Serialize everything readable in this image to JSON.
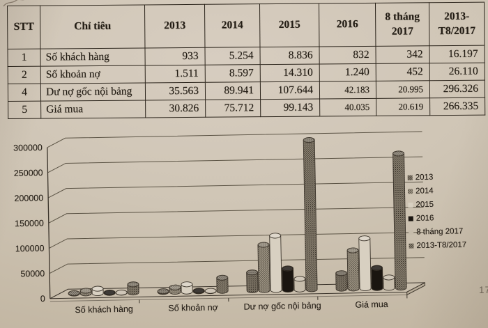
{
  "page": {
    "page_number": "17"
  },
  "colors": {
    "paper": "#cfc5b5",
    "ink": "#3a332a",
    "floor": "#c9beac",
    "floor_side": "#b9ad99"
  },
  "table": {
    "columns": [
      "STT",
      "Chỉ tiêu",
      "2013",
      "2014",
      "2015",
      "2016",
      "8 tháng 2017",
      "2013-T8/2017"
    ],
    "rows": [
      {
        "stt": "1",
        "label": "Số khách hàng",
        "values": [
          "933",
          "5.254",
          "8.836",
          "832",
          "342",
          "16.197"
        ]
      },
      {
        "stt": "2",
        "label": "Số khoản nợ",
        "values": [
          "1.511",
          "8.597",
          "14.310",
          "1.240",
          "452",
          "26.110"
        ]
      },
      {
        "stt": "4",
        "label": "Dư nợ gốc nội bảng",
        "values": [
          "35.563",
          "89.941",
          "107.644",
          "42.183",
          "20.995",
          "296.326"
        ]
      },
      {
        "stt": "5",
        "label": "Giá mua",
        "values": [
          "30.826",
          "75.712",
          "99.143",
          "40.035",
          "20.619",
          "266.335"
        ]
      }
    ]
  },
  "chart_data": {
    "type": "bar",
    "style": "3d-cylinder",
    "title": "",
    "xlabel": "",
    "ylabel": "",
    "categories": [
      "Số khách hàng",
      "Số khoản nợ",
      "Dư nợ gốc nội bảng",
      "Giá mua"
    ],
    "series": [
      {
        "name": "2013",
        "values": [
          933,
          1511,
          35563,
          30826
        ],
        "color": "#847b6c",
        "pattern": "speckle-dark"
      },
      {
        "name": "2014",
        "values": [
          5254,
          8597,
          89941,
          75712
        ],
        "color": "#a29988",
        "pattern": "speckle"
      },
      {
        "name": "2015",
        "values": [
          8836,
          14310,
          107644,
          99143
        ],
        "color": "#d8d0c1",
        "pattern": "plain-light"
      },
      {
        "name": "2016",
        "values": [
          832,
          1240,
          42183,
          40035
        ],
        "color": "#1a1510",
        "pattern": "solid-black"
      },
      {
        "name": "8 tháng 2017",
        "values": [
          342,
          452,
          20995,
          20619
        ],
        "color": "#c6bcab",
        "pattern": "plain"
      },
      {
        "name": "2013-T8/2017",
        "values": [
          16197,
          26110,
          296326,
          266335
        ],
        "color": "#8d8474",
        "pattern": "speckle-dark"
      }
    ],
    "ylim": [
      0,
      300000
    ],
    "ytick_step": 50000,
    "yticks": [
      "0",
      "50000",
      "100000",
      "150000",
      "200000",
      "250000",
      "300000"
    ],
    "grid": true,
    "legend_position": "right"
  }
}
